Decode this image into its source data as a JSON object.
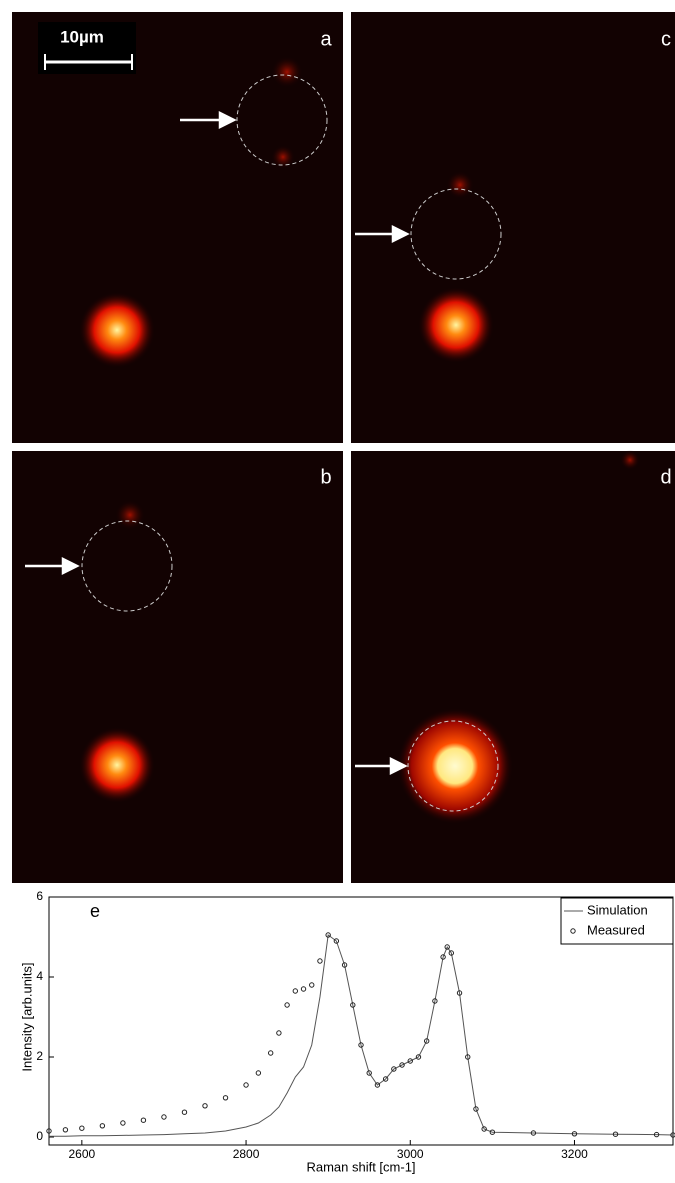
{
  "panels": [
    {
      "label": "a"
    },
    {
      "label": "c"
    },
    {
      "label": "b"
    },
    {
      "label": "d"
    }
  ],
  "scale_bar": "10µm",
  "chart_data": {
    "type": "line",
    "label": "e",
    "x_label": "Raman shift [cm-1]",
    "y_label": "Intensity [arb.units]",
    "x": [
      2560,
      2580,
      2600,
      2625,
      2650,
      2675,
      2700,
      2725,
      2750,
      2775,
      2800,
      2815,
      2830,
      2840,
      2850,
      2860,
      2870,
      2880,
      2890,
      2900,
      2910,
      2920,
      2930,
      2940,
      2950,
      2960,
      2970,
      2980,
      2990,
      3000,
      3010,
      3020,
      3030,
      3040,
      3045,
      3050,
      3060,
      3070,
      3080,
      3090,
      3100,
      3150,
      3200,
      3250,
      3300,
      3320
    ],
    "series": [
      {
        "name": "Simulation",
        "color": "#555555",
        "style": "line",
        "values": [
          0.02,
          0.02,
          0.03,
          0.03,
          0.04,
          0.05,
          0.06,
          0.08,
          0.1,
          0.15,
          0.25,
          0.35,
          0.55,
          0.75,
          1.1,
          1.5,
          1.75,
          2.3,
          3.5,
          5.05,
          4.9,
          4.3,
          3.3,
          2.3,
          1.6,
          1.3,
          1.45,
          1.7,
          1.8,
          1.9,
          2.0,
          2.4,
          3.4,
          4.5,
          4.75,
          4.6,
          3.6,
          2.0,
          0.7,
          0.2,
          0.12,
          0.1,
          0.08,
          0.07,
          0.06,
          0.05
        ]
      },
      {
        "name": "Measured",
        "color": "#222222",
        "style": "marker",
        "values": [
          0.15,
          0.18,
          0.22,
          0.28,
          0.35,
          0.42,
          0.5,
          0.62,
          0.78,
          0.98,
          1.3,
          1.6,
          2.1,
          2.6,
          3.3,
          3.65,
          3.7,
          3.8,
          4.4,
          5.05,
          4.9,
          4.3,
          3.3,
          2.3,
          1.6,
          1.3,
          1.45,
          1.7,
          1.8,
          1.9,
          2.0,
          2.4,
          3.4,
          4.5,
          4.75,
          4.6,
          3.6,
          2.0,
          0.7,
          0.2,
          0.12,
          0.1,
          0.08,
          0.07,
          0.06,
          0.05
        ]
      }
    ],
    "xlim": [
      2560,
      3320
    ],
    "ylim": [
      -0.2,
      6
    ],
    "xticks": [
      2600,
      2800,
      3000,
      3200
    ],
    "yticks": [
      0,
      2,
      4,
      6
    ],
    "legend": "upper right"
  }
}
